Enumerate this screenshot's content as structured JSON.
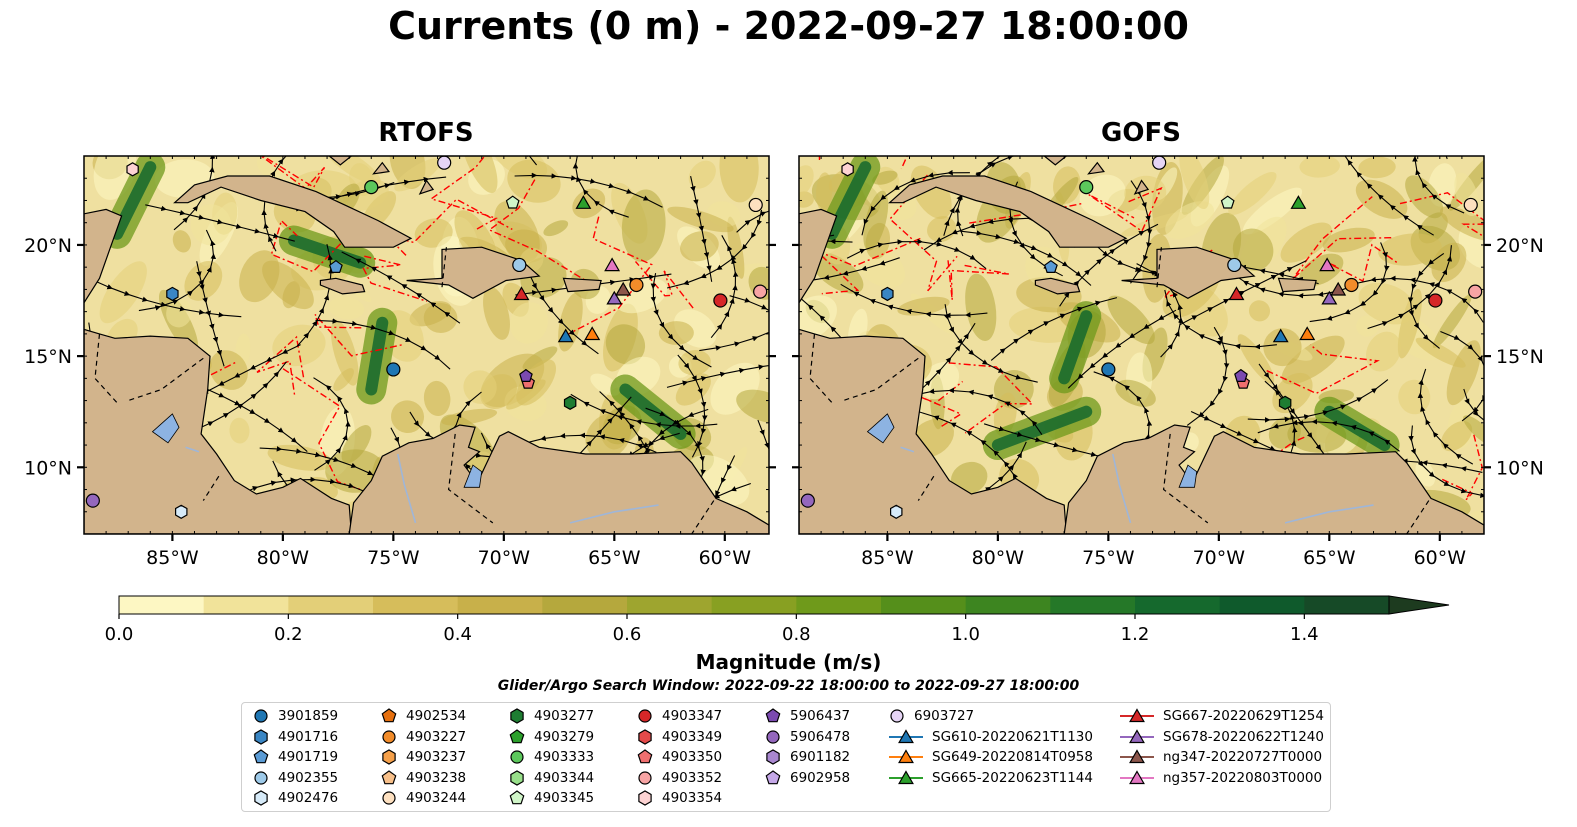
{
  "title": "Currents (0 m) - 2022-09-27 18:00:00",
  "panels": [
    {
      "title": "RTOFS"
    },
    {
      "title": "GOFS"
    }
  ],
  "map": {
    "lon_range": [
      -89,
      -58
    ],
    "lat_range": [
      7,
      24
    ],
    "lat_ticks": [
      "20°N",
      "15°N",
      "10°N"
    ],
    "lon_ticks": [
      "85°W",
      "80°W",
      "75°W",
      "70°W",
      "65°W",
      "60°W"
    ],
    "land_color": "#d2b48c",
    "lake_color": "#8db3e2",
    "eez_color": "#ff0000"
  },
  "colorbar": {
    "label": "Magnitude (m/s)",
    "range": [
      0.0,
      1.5
    ],
    "ticks": [
      "0.0",
      "0.2",
      "0.4",
      "0.6",
      "0.8",
      "1.0",
      "1.2",
      "1.4"
    ],
    "extend": "max",
    "colors": [
      "#fdf7c3",
      "#f1e39a",
      "#e3cf78",
      "#d6bd5b",
      "#c8b04a",
      "#b5a83d",
      "#9ea52f",
      "#88a022",
      "#6f9a1b",
      "#558f1b",
      "#3d8520",
      "#257828",
      "#15692d",
      "#0f5a2c",
      "#164a27",
      "#1d3b1f"
    ]
  },
  "search_window": "Glider/Argo Search Window: 2022-09-22 18:00:00 to 2022-09-27 18:00:00",
  "legend": {
    "columns": [
      [
        {
          "label": "3901859",
          "marker": "circle",
          "color": "#1f77b4"
        },
        {
          "label": "4901716",
          "marker": "hexagon",
          "color": "#3a86c4"
        },
        {
          "label": "4901719",
          "marker": "pentagon",
          "color": "#5a9bd5"
        },
        {
          "label": "4902355",
          "marker": "circle",
          "color": "#9ecae9"
        },
        {
          "label": "4902476",
          "marker": "hexagon",
          "color": "#d6eaf8"
        }
      ],
      [
        {
          "label": "4902534",
          "marker": "pentagon",
          "color": "#e6700f"
        },
        {
          "label": "4903227",
          "marker": "circle",
          "color": "#f28c2a"
        },
        {
          "label": "4903237",
          "marker": "hexagon",
          "color": "#f5a04a"
        },
        {
          "label": "4903238",
          "marker": "pentagon",
          "color": "#f8c08a"
        },
        {
          "label": "4903244",
          "marker": "circle",
          "color": "#fde0c0"
        }
      ],
      [
        {
          "label": "4903277",
          "marker": "hexagon",
          "color": "#1e7d32"
        },
        {
          "label": "4903279",
          "marker": "pentagon",
          "color": "#2ca02c"
        },
        {
          "label": "4903333",
          "marker": "circle",
          "color": "#5cc85c"
        },
        {
          "label": "4903344",
          "marker": "hexagon",
          "color": "#98df8a"
        },
        {
          "label": "4903345",
          "marker": "pentagon",
          "color": "#d0f5c8"
        }
      ],
      [
        {
          "label": "4903347",
          "marker": "circle",
          "color": "#d62728"
        },
        {
          "label": "4903349",
          "marker": "hexagon",
          "color": "#e34a4a"
        },
        {
          "label": "4903350",
          "marker": "pentagon",
          "color": "#ef6f6f"
        },
        {
          "label": "4903352",
          "marker": "circle",
          "color": "#f7a4a4"
        },
        {
          "label": "4903354",
          "marker": "hexagon",
          "color": "#fdd3d3"
        }
      ],
      [
        {
          "label": "5906437",
          "marker": "pentagon",
          "color": "#7b4ab0"
        },
        {
          "label": "5906478",
          "marker": "circle",
          "color": "#9467bd"
        },
        {
          "label": "6901182",
          "marker": "hexagon",
          "color": "#a987d0"
        },
        {
          "label": "6902958",
          "marker": "pentagon",
          "color": "#c5a8e8"
        }
      ],
      [
        {
          "label": "6903727",
          "marker": "circle",
          "color": "#e6d5f5"
        },
        {
          "label": "SG610-20220621T1130",
          "marker": "triangle-line",
          "color": "#1f77b4"
        },
        {
          "label": "SG649-20220814T0958",
          "marker": "triangle-line",
          "color": "#ff7f0e"
        },
        {
          "label": "SG665-20220623T1144",
          "marker": "triangle-line",
          "color": "#2ca02c"
        }
      ],
      [
        {
          "label": "SG667-20220629T1254",
          "marker": "triangle-line",
          "color": "#d62728"
        },
        {
          "label": "SG678-20220622T1240",
          "marker": "triangle-line",
          "color": "#9467bd"
        },
        {
          "label": "ng347-20220727T0000",
          "marker": "triangle-line",
          "color": "#8c564b"
        },
        {
          "label": "ng357-20220803T0000",
          "marker": "triangle-line",
          "color": "#e377c2"
        }
      ]
    ]
  },
  "platforms": [
    {
      "id": "3901859",
      "lon": -75.0,
      "lat": 14.4
    },
    {
      "id": "4901716",
      "lon": -85.0,
      "lat": 17.8
    },
    {
      "id": "4901719",
      "lon": -77.6,
      "lat": 19.0
    },
    {
      "id": "4902355",
      "lon": -69.3,
      "lat": 19.1
    },
    {
      "id": "4902476",
      "lon": -84.6,
      "lat": 8.0
    },
    {
      "id": "4903227",
      "lon": -64.0,
      "lat": 18.2
    },
    {
      "id": "4903244",
      "lon": -58.6,
      "lat": 21.8
    },
    {
      "id": "4903277",
      "lon": -67.0,
      "lat": 12.9
    },
    {
      "id": "4903333",
      "lon": -76.0,
      "lat": 22.6
    },
    {
      "id": "4903345",
      "lon": -69.6,
      "lat": 21.9
    },
    {
      "id": "4903347",
      "lon": -60.2,
      "lat": 17.5
    },
    {
      "id": "4903350",
      "lon": -68.9,
      "lat": 13.8
    },
    {
      "id": "4903352",
      "lon": -58.4,
      "lat": 17.9
    },
    {
      "id": "4903354",
      "lon": -86.8,
      "lat": 23.4
    },
    {
      "id": "5906437",
      "lon": -69.0,
      "lat": 14.1
    },
    {
      "id": "5906478",
      "lon": -88.6,
      "lat": 8.5
    },
    {
      "id": "6903727",
      "lon": -72.7,
      "lat": 23.7
    }
  ],
  "gliders": [
    {
      "id": "SG610-20220621T1130",
      "lon": -67.2,
      "lat": 15.9
    },
    {
      "id": "SG649-20220814T0958",
      "lon": -66.0,
      "lat": 16.0
    },
    {
      "id": "SG665-20220623T1144",
      "lon": -66.4,
      "lat": 21.9
    },
    {
      "id": "SG667-20220629T1254",
      "lon": -69.2,
      "lat": 17.8
    },
    {
      "id": "SG678-20220622T1240",
      "lon": -65.0,
      "lat": 17.6
    },
    {
      "id": "ng347-20220727T0000",
      "lon": -64.6,
      "lat": 18.0
    },
    {
      "id": "ng357-20220803T0000",
      "lon": -65.1,
      "lat": 19.1
    }
  ]
}
